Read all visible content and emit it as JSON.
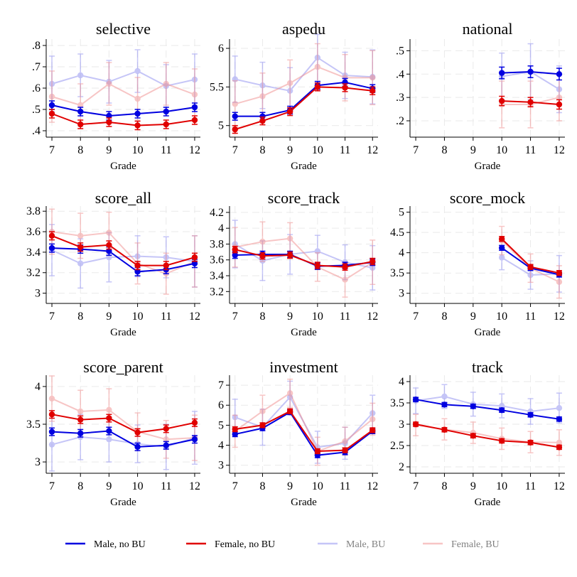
{
  "chart_data": {
    "type": "line",
    "x": [
      7,
      8,
      9,
      10,
      11,
      12
    ],
    "xlabel": "Grade",
    "series_styles": [
      {
        "name": "Male, no BU",
        "color": "#0000e0",
        "opacity": 1.0
      },
      {
        "name": "Female, no BU",
        "color": "#e00000",
        "opacity": 1.0
      },
      {
        "name": "Male, BU",
        "color": "#8c8cf0",
        "opacity": 0.5
      },
      {
        "name": "Female, BU",
        "color": "#f08c8c",
        "opacity": 0.5
      }
    ],
    "legend": {
      "position": "bottom",
      "items": [
        "Male, no BU",
        "Female, no BU",
        "Male, BU",
        "Female, BU"
      ]
    },
    "panels": [
      {
        "title": "selective",
        "ylim": [
          0.37,
          0.83
        ],
        "yticks": [
          0.4,
          0.5,
          0.6,
          0.7,
          0.8
        ],
        "ytick_labels": [
          ".4",
          ".5",
          ".6",
          ".7",
          ".8"
        ],
        "series": [
          {
            "name": "Male, no BU",
            "values": [
              0.52,
              0.49,
              0.47,
              0.48,
              0.49,
              0.51
            ],
            "err": [
              0.02,
              0.02,
              0.02,
              0.02,
              0.02,
              0.02
            ]
          },
          {
            "name": "Female, no BU",
            "values": [
              0.48,
              0.43,
              0.44,
              0.425,
              0.43,
              0.45
            ],
            "err": [
              0.02,
              0.02,
              0.02,
              0.02,
              0.02,
              0.02
            ]
          },
          {
            "name": "Male, BU",
            "values": [
              0.62,
              0.66,
              0.63,
              0.68,
              0.61,
              0.64
            ],
            "err": [
              0.13,
              0.1,
              0.1,
              0.1,
              0.1,
              0.12
            ]
          },
          {
            "name": "Female, BU",
            "values": [
              0.56,
              0.52,
              0.62,
              0.55,
              0.62,
              0.57
            ],
            "err": [
              0.12,
              0.1,
              0.1,
              0.1,
              0.1,
              0.12
            ]
          }
        ]
      },
      {
        "title": "aspedu",
        "ylim": [
          4.85,
          6.12
        ],
        "yticks": [
          5,
          5.5,
          6
        ],
        "ytick_labels": [
          "5",
          "5.5",
          "6"
        ],
        "series": [
          {
            "name": "Male, no BU",
            "values": [
              5.12,
              5.12,
              5.2,
              5.52,
              5.56,
              5.48
            ],
            "err": [
              0.05,
              0.05,
              0.05,
              0.05,
              0.05,
              0.05
            ]
          },
          {
            "name": "Female, no BU",
            "values": [
              4.95,
              5.06,
              5.18,
              5.5,
              5.49,
              5.45
            ],
            "err": [
              0.05,
              0.05,
              0.05,
              0.05,
              0.05,
              0.05
            ]
          },
          {
            "name": "Male, BU",
            "values": [
              5.6,
              5.52,
              5.45,
              5.88,
              5.65,
              5.63
            ],
            "err": [
              0.3,
              0.3,
              0.3,
              0.3,
              0.3,
              0.35
            ]
          },
          {
            "name": "Female, BU",
            "values": [
              5.28,
              5.38,
              5.55,
              5.76,
              5.62,
              5.62
            ],
            "err": [
              0.3,
              0.3,
              0.3,
              0.3,
              0.3,
              0.35
            ]
          }
        ]
      },
      {
        "title": "national",
        "ylim": [
          0.13,
          0.55
        ],
        "yticks": [
          0.2,
          0.3,
          0.4,
          0.5
        ],
        "ytick_labels": [
          ".2",
          ".3",
          ".4",
          ".5"
        ],
        "series": [
          {
            "name": "Male, no BU",
            "values": [
              null,
              null,
              null,
              0.405,
              0.41,
              0.4
            ],
            "err": [
              null,
              null,
              null,
              0.025,
              0.025,
              0.025
            ]
          },
          {
            "name": "Female, no BU",
            "values": [
              null,
              null,
              null,
              0.285,
              0.28,
              0.27
            ],
            "err": [
              null,
              null,
              null,
              0.02,
              0.02,
              0.02
            ]
          },
          {
            "name": "Male, BU",
            "values": [
              null,
              null,
              null,
              0.39,
              0.41,
              0.335
            ],
            "err": [
              null,
              null,
              null,
              0.1,
              0.12,
              0.1
            ]
          },
          {
            "name": "Female, BU",
            "values": [
              null,
              null,
              null,
              0.27,
              0.27,
              0.3
            ],
            "err": [
              null,
              null,
              null,
              0.1,
              0.1,
              0.1
            ]
          }
        ]
      },
      {
        "title": "score_all",
        "ylim": [
          2.9,
          3.85
        ],
        "yticks": [
          3,
          3.2,
          3.4,
          3.6,
          3.8
        ],
        "ytick_labels": [
          "3",
          "3.2",
          "3.4",
          "3.6",
          "3.8"
        ],
        "series": [
          {
            "name": "Male, no BU",
            "values": [
              3.44,
              3.43,
              3.41,
              3.21,
              3.23,
              3.29
            ],
            "err": [
              0.04,
              0.04,
              0.04,
              0.04,
              0.04,
              0.04
            ]
          },
          {
            "name": "Female, no BU",
            "values": [
              3.56,
              3.45,
              3.47,
              3.27,
              3.27,
              3.35
            ],
            "err": [
              0.04,
              0.04,
              0.04,
              0.04,
              0.04,
              0.04
            ]
          },
          {
            "name": "Male, BU",
            "values": [
              3.42,
              3.29,
              3.35,
              3.36,
              3.35,
              3.31
            ],
            "err": [
              0.25,
              0.24,
              0.24,
              0.2,
              0.2,
              0.25
            ]
          },
          {
            "name": "Female, BU",
            "values": [
              3.6,
              3.56,
              3.59,
              3.29,
              3.19,
              3.31
            ],
            "err": [
              0.22,
              0.22,
              0.2,
              0.2,
              0.2,
              0.25
            ]
          }
        ]
      },
      {
        "title": "score_track",
        "ylim": [
          3.05,
          4.28
        ],
        "yticks": [
          3.2,
          3.4,
          3.6,
          3.8,
          4,
          4.2
        ],
        "ytick_labels": [
          "3.2",
          "3.4",
          "3.6",
          "3.8",
          "4",
          "4.2"
        ],
        "series": [
          {
            "name": "Male, no BU",
            "values": [
              3.66,
              3.67,
              3.67,
              3.52,
              3.53,
              3.57
            ],
            "err": [
              0.04,
              0.04,
              0.04,
              0.04,
              0.04,
              0.04
            ]
          },
          {
            "name": "Female, no BU",
            "values": [
              3.73,
              3.65,
              3.66,
              3.53,
              3.51,
              3.58
            ],
            "err": [
              0.04,
              0.04,
              0.04,
              0.04,
              0.04,
              0.04
            ]
          },
          {
            "name": "Male, BU",
            "values": [
              3.8,
              3.59,
              3.67,
              3.71,
              3.57,
              3.5
            ],
            "err": [
              0.3,
              0.25,
              0.25,
              0.2,
              0.22,
              0.28
            ]
          },
          {
            "name": "Female, BU",
            "values": [
              3.76,
              3.83,
              3.87,
              3.51,
              3.35,
              3.57
            ],
            "err": [
              0.25,
              0.25,
              0.2,
              0.18,
              0.22,
              0.28
            ]
          }
        ]
      },
      {
        "title": "score_mock",
        "ylim": [
          2.75,
          5.15
        ],
        "yticks": [
          3,
          3.5,
          4,
          4.5,
          5
        ],
        "ytick_labels": [
          "3",
          "3.5",
          "4",
          "4.5",
          "5"
        ],
        "series": [
          {
            "name": "Male, no BU",
            "values": [
              null,
              null,
              null,
              4.12,
              3.62,
              3.46
            ],
            "err": [
              null,
              null,
              null,
              0.06,
              0.06,
              0.06
            ]
          },
          {
            "name": "Female, no BU",
            "values": [
              null,
              null,
              null,
              4.34,
              3.65,
              3.5
            ],
            "err": [
              null,
              null,
              null,
              0.06,
              0.06,
              0.06
            ]
          },
          {
            "name": "Male, BU",
            "values": [
              null,
              null,
              null,
              3.88,
              3.45,
              3.48
            ],
            "err": [
              null,
              null,
              null,
              0.3,
              0.35,
              0.45
            ]
          },
          {
            "name": "Female, BU",
            "values": [
              null,
              null,
              null,
              4.3,
              3.62,
              3.28
            ],
            "err": [
              null,
              null,
              null,
              0.35,
              0.35,
              0.4
            ]
          }
        ]
      },
      {
        "title": "score_parent",
        "ylim": [
          2.85,
          4.15
        ],
        "yticks": [
          3,
          3.5,
          4
        ],
        "ytick_labels": [
          "3",
          "3.5",
          "4"
        ],
        "series": [
          {
            "name": "Male, no BU",
            "values": [
              3.4,
              3.38,
              3.41,
              3.2,
              3.22,
              3.3
            ],
            "err": [
              0.05,
              0.05,
              0.05,
              0.05,
              0.05,
              0.05
            ]
          },
          {
            "name": "Female, no BU",
            "values": [
              3.63,
              3.56,
              3.58,
              3.39,
              3.44,
              3.52
            ],
            "err": [
              0.05,
              0.05,
              0.05,
              0.05,
              0.05,
              0.05
            ]
          },
          {
            "name": "Male, BU",
            "values": [
              3.23,
              3.33,
              3.3,
              3.24,
              3.2,
              3.32
            ],
            "err": [
              0.35,
              0.3,
              0.3,
              0.25,
              0.3,
              0.35
            ]
          },
          {
            "name": "Female, BU",
            "values": [
              3.84,
              3.67,
              3.69,
              3.4,
              3.3,
              3.32
            ],
            "err": [
              0.3,
              0.28,
              0.28,
              0.25,
              0.25,
              0.3
            ]
          }
        ]
      },
      {
        "title": "investment",
        "ylim": [
          2.6,
          7.5
        ],
        "yticks": [
          3,
          4,
          5,
          6,
          7
        ],
        "ytick_labels": [
          "3",
          "4",
          "5",
          "6",
          "7"
        ],
        "series": [
          {
            "name": "Male, no BU",
            "values": [
              4.55,
              4.85,
              5.65,
              3.5,
              3.65,
              4.7
            ],
            "err": [
              0.12,
              0.12,
              0.12,
              0.12,
              0.12,
              0.12
            ]
          },
          {
            "name": "Female, no BU",
            "values": [
              4.8,
              5.0,
              5.7,
              3.7,
              3.75,
              4.75
            ],
            "err": [
              0.12,
              0.12,
              0.12,
              0.12,
              0.12,
              0.12
            ]
          },
          {
            "name": "Male, BU",
            "values": [
              5.4,
              4.9,
              6.4,
              3.9,
              4.1,
              5.6
            ],
            "err": [
              0.9,
              0.9,
              0.8,
              0.8,
              0.8,
              0.9
            ]
          },
          {
            "name": "Female, BU",
            "values": [
              4.7,
              5.7,
              6.6,
              3.7,
              4.2,
              5.3
            ],
            "err": [
              0.8,
              0.8,
              0.7,
              0.7,
              0.7,
              0.8
            ]
          }
        ]
      },
      {
        "title": "track",
        "ylim": [
          1.85,
          4.15
        ],
        "yticks": [
          2,
          2.5,
          3,
          3.5,
          4
        ],
        "ytick_labels": [
          "2",
          "2.5",
          "3",
          "3.5",
          "4"
        ],
        "series": [
          {
            "name": "Male, no BU",
            "values": [
              3.58,
              3.46,
              3.42,
              3.33,
              3.22,
              3.12
            ],
            "err": [
              0.05,
              0.05,
              0.05,
              0.05,
              0.05,
              0.05
            ]
          },
          {
            "name": "Female, no BU",
            "values": [
              3.0,
              2.87,
              2.73,
              2.61,
              2.57,
              2.46
            ],
            "err": [
              0.05,
              0.05,
              0.05,
              0.05,
              0.05,
              0.05
            ]
          },
          {
            "name": "Male, BU",
            "values": [
              3.55,
              3.65,
              3.47,
              3.43,
              3.3,
              3.38
            ],
            "err": [
              0.3,
              0.28,
              0.28,
              0.28,
              0.3,
              0.35
            ]
          },
          {
            "name": "Female, BU",
            "values": [
              2.98,
              2.88,
              2.8,
              2.66,
              2.58,
              2.57
            ],
            "err": [
              0.25,
              0.25,
              0.25,
              0.25,
              0.25,
              0.3
            ]
          }
        ]
      }
    ]
  }
}
